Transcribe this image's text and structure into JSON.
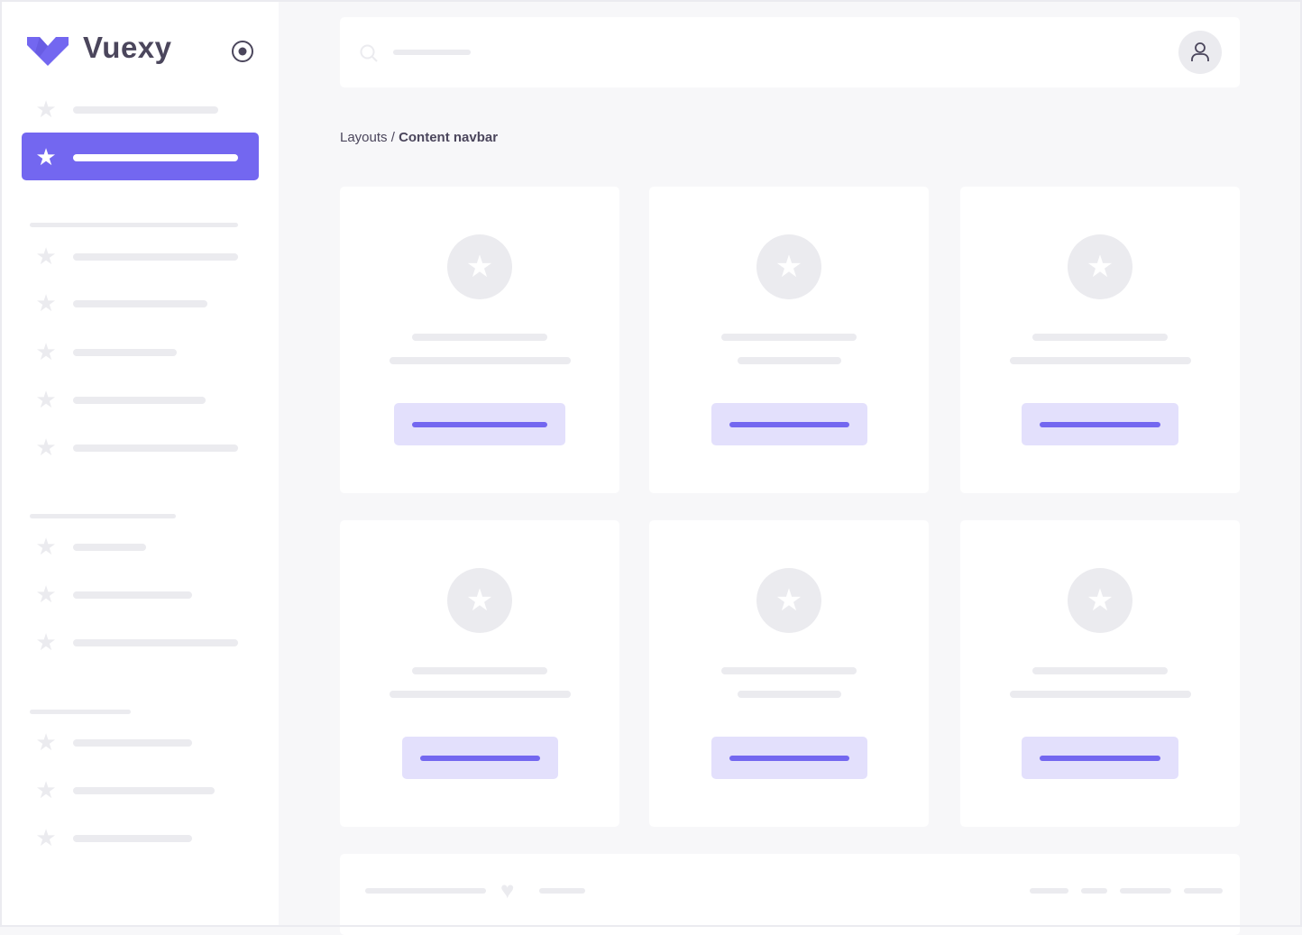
{
  "brand": {
    "name": "Vuexy",
    "color": "#7367f0"
  },
  "sidebar": {
    "toggle_icon": "radio-circle-icon",
    "item_icon": "star-icon"
  },
  "header": {
    "search_icon": "search-icon",
    "avatar_icon": "user-icon"
  },
  "breadcrumb": {
    "parent": "Layouts",
    "separator": " / ",
    "current": "Content navbar"
  },
  "footer": {
    "icon": "heart-icon"
  }
}
